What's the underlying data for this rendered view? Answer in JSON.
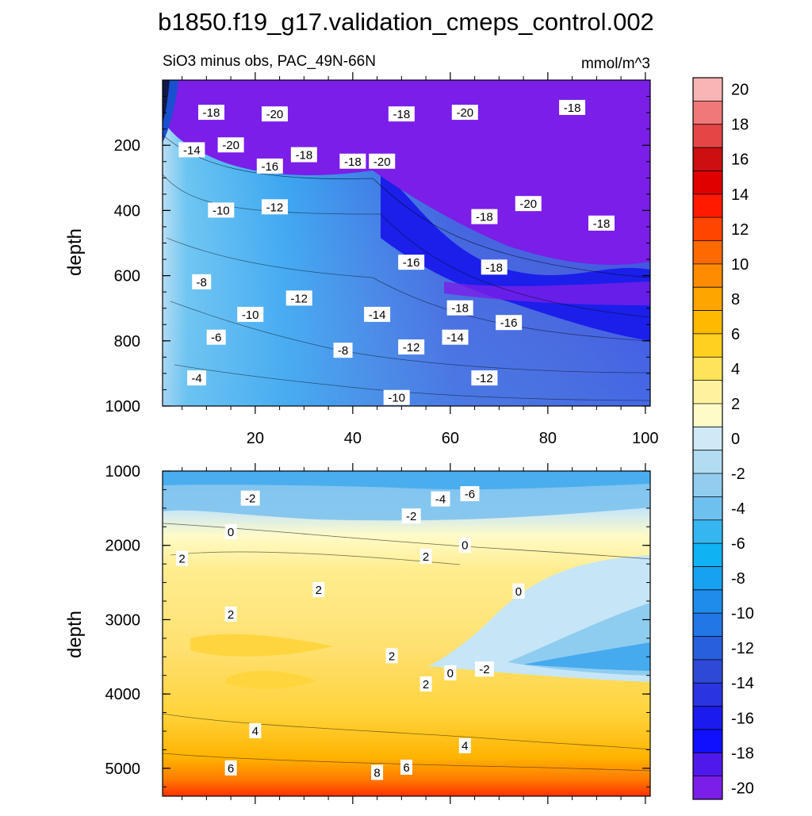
{
  "figure": {
    "title": "b1850.f19_g17.validation_cmeps_control.002",
    "subtitle_left": "SiO3 minus obs, PAC_49N-66N",
    "subtitle_right": "mmol/m^3"
  },
  "chart_data": [
    {
      "type": "heatmap",
      "name": "upper-panel",
      "ylabel": "depth",
      "xlabel": "",
      "xlim": [
        1,
        101
      ],
      "ylim": [
        0,
        1000
      ],
      "x_ticks": [
        20,
        40,
        60,
        80,
        100
      ],
      "y_ticks": [
        200,
        400,
        600,
        800,
        1000
      ],
      "contour_labels": [
        {
          "text": "-18",
          "x": 11,
          "y": 100
        },
        {
          "text": "-20",
          "x": 24,
          "y": 105
        },
        {
          "text": "-18",
          "x": 50,
          "y": 105
        },
        {
          "text": "-20",
          "x": 63,
          "y": 100
        },
        {
          "text": "-18",
          "x": 85,
          "y": 85
        },
        {
          "text": "-14",
          "x": 7,
          "y": 215
        },
        {
          "text": "-20",
          "x": 15,
          "y": 200
        },
        {
          "text": "-16",
          "x": 23,
          "y": 265
        },
        {
          "text": "-18",
          "x": 30,
          "y": 230
        },
        {
          "text": "-18",
          "x": 40,
          "y": 250
        },
        {
          "text": "-20",
          "x": 46,
          "y": 250
        },
        {
          "text": "-10",
          "x": 13,
          "y": 400
        },
        {
          "text": "-12",
          "x": 24,
          "y": 390
        },
        {
          "text": "-18",
          "x": 67,
          "y": 420
        },
        {
          "text": "-20",
          "x": 76,
          "y": 380
        },
        {
          "text": "-18",
          "x": 91,
          "y": 440
        },
        {
          "text": "-16",
          "x": 52,
          "y": 560
        },
        {
          "text": "-18",
          "x": 69,
          "y": 575
        },
        {
          "text": "-8",
          "x": 9,
          "y": 620
        },
        {
          "text": "-12",
          "x": 29,
          "y": 670
        },
        {
          "text": "-10",
          "x": 19,
          "y": 720
        },
        {
          "text": "-14",
          "x": 45,
          "y": 720
        },
        {
          "text": "-18",
          "x": 62,
          "y": 700
        },
        {
          "text": "-16",
          "x": 72,
          "y": 745
        },
        {
          "text": "-6",
          "x": 12,
          "y": 790
        },
        {
          "text": "-8",
          "x": 38,
          "y": 830
        },
        {
          "text": "-12",
          "x": 52,
          "y": 820
        },
        {
          "text": "-14",
          "x": 61,
          "y": 790
        },
        {
          "text": "-12",
          "x": 67,
          "y": 915
        },
        {
          "text": "-4",
          "x": 8,
          "y": 915
        },
        {
          "text": "-10",
          "x": 49,
          "y": 975
        }
      ]
    },
    {
      "type": "heatmap",
      "name": "lower-panel",
      "ylabel": "depth",
      "xlabel": "",
      "xlim": [
        1,
        101
      ],
      "ylim": [
        1000,
        5375
      ],
      "y_ticks": [
        1000,
        2000,
        3000,
        4000,
        5000
      ],
      "contour_labels": [
        {
          "text": "-2",
          "x": 19,
          "y": 1370
        },
        {
          "text": "-4",
          "x": 58,
          "y": 1380
        },
        {
          "text": "-6",
          "x": 64,
          "y": 1310
        },
        {
          "text": "-2",
          "x": 52,
          "y": 1610
        },
        {
          "text": "0",
          "x": 15,
          "y": 1820
        },
        {
          "text": "0",
          "x": 63,
          "y": 2000
        },
        {
          "text": "2",
          "x": 5,
          "y": 2180
        },
        {
          "text": "2",
          "x": 55,
          "y": 2150
        },
        {
          "text": "2",
          "x": 33,
          "y": 2600
        },
        {
          "text": "0",
          "x": 74,
          "y": 2620
        },
        {
          "text": "2",
          "x": 15,
          "y": 2930
        },
        {
          "text": "2",
          "x": 48,
          "y": 3490
        },
        {
          "text": "0",
          "x": 60,
          "y": 3720
        },
        {
          "text": "-2",
          "x": 67,
          "y": 3670
        },
        {
          "text": "2",
          "x": 55,
          "y": 3870
        },
        {
          "text": "4",
          "x": 20,
          "y": 4500
        },
        {
          "text": "4",
          "x": 63,
          "y": 4700
        },
        {
          "text": "6",
          "x": 15,
          "y": 5000
        },
        {
          "text": "8",
          "x": 45,
          "y": 5060
        },
        {
          "text": "6",
          "x": 51,
          "y": 4990
        }
      ]
    },
    {
      "type": "colorbar",
      "name": "colorbar",
      "levels": [
        -20,
        -18,
        -16,
        -14,
        -12,
        -10,
        -8,
        -6,
        -4,
        -2,
        0,
        2,
        4,
        6,
        8,
        10,
        12,
        14,
        16,
        18,
        20
      ],
      "tick_labels": [
        "20",
        "18",
        "16",
        "14",
        "12",
        "10",
        "8",
        "6",
        "4",
        "2",
        "0",
        "-2",
        "-4",
        "-6",
        "-8",
        "-10",
        "-12",
        "-14",
        "-16",
        "-18",
        "-20"
      ],
      "colors": [
        "#f9b5b5",
        "#f07878",
        "#e64545",
        "#cc1010",
        "#e00000",
        "#ff1a00",
        "#ff4500",
        "#ff6a00",
        "#ff8c00",
        "#ffa500",
        "#ffbb00",
        "#ffd020",
        "#ffe35a",
        "#fff3a0",
        "#fffbc8",
        "#cfe9f7",
        "#b1dcf2",
        "#92cdef",
        "#6ec1ee",
        "#36b6f0",
        "#0fb2f3",
        "#16a2f0",
        "#1f8cec",
        "#2376e6",
        "#285fdd",
        "#2d49d5",
        "#2a34e0",
        "#1b1aef",
        "#1010ff",
        "#5019ec",
        "#7a1ee8"
      ],
      "color_order": "top-to-bottom"
    }
  ]
}
